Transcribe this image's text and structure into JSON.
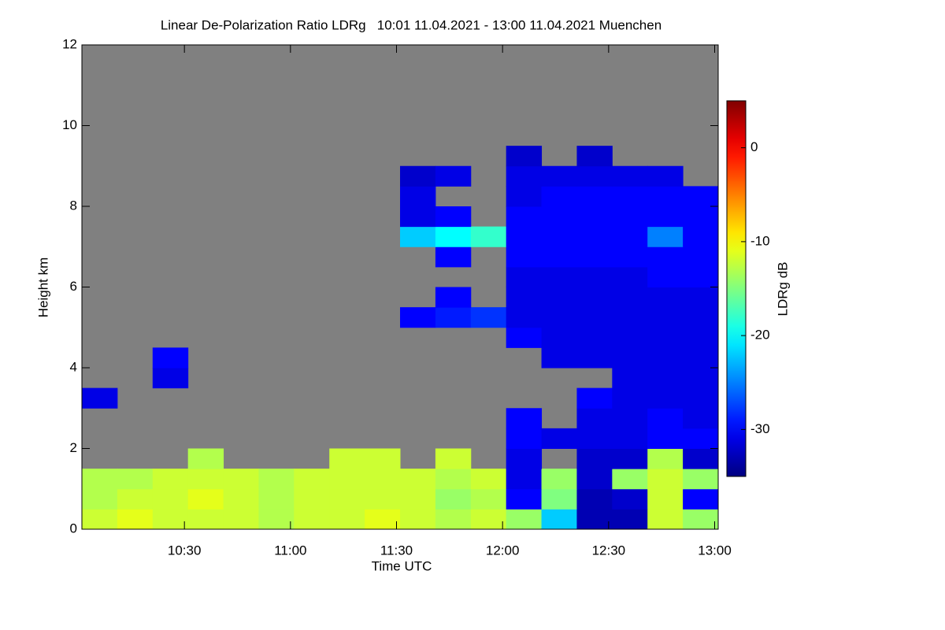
{
  "chart_data": {
    "type": "heatmap",
    "title": "Linear De-Polarization Ratio LDRg   10:01 11.04.2021 - 13:00 11.04.2021 Muenchen",
    "xlabel": "Time UTC",
    "ylabel": "Height km",
    "colorbar_label": "LDRg dB",
    "colormap": "jet",
    "background": "#808080",
    "xlim": [
      601,
      781
    ],
    "ylim": [
      0,
      12
    ],
    "xticks": [
      {
        "value": 630,
        "label": "10:30"
      },
      {
        "value": 660,
        "label": "11:00"
      },
      {
        "value": 690,
        "label": "11:30"
      },
      {
        "value": 720,
        "label": "12:00"
      },
      {
        "value": 750,
        "label": "12:30"
      },
      {
        "value": 780,
        "label": "13:00"
      }
    ],
    "yticks": [
      0,
      2,
      4,
      6,
      8,
      10,
      12
    ],
    "clim": [
      -35,
      5
    ],
    "cticks": [
      0,
      -10,
      -20,
      -30
    ],
    "x_bins": [
      601,
      611,
      621,
      631,
      641,
      651,
      661,
      671,
      681,
      691,
      701,
      711,
      721,
      731,
      741,
      751,
      761,
      771,
      781
    ],
    "y_bins": [
      0,
      0.5,
      1,
      1.5,
      2,
      2.5,
      3,
      3.5,
      4,
      4.5,
      5,
      5.5,
      6,
      6.5,
      7,
      7.5,
      8,
      8.5,
      9,
      9.5,
      10,
      10.5,
      11,
      11.5,
      12
    ],
    "z": [
      [
        -12,
        -11,
        -12,
        -12,
        -12,
        -13,
        -12,
        -12,
        -11,
        -12,
        -13,
        -12,
        -14,
        -22,
        -33,
        -33,
        -12,
        -14
      ],
      [
        -13,
        -12,
        -12,
        -11,
        -12,
        -13,
        -12,
        -12,
        -12,
        -12,
        -14,
        -13,
        -30,
        -15,
        -33,
        -32,
        -12,
        -30
      ],
      [
        -13,
        -13,
        -12,
        -12,
        -12,
        -13,
        -12,
        -12,
        -12,
        -12,
        -13,
        -12,
        -31,
        -14,
        -32,
        -14,
        -12,
        -14
      ],
      [
        null,
        null,
        null,
        -13,
        null,
        null,
        null,
        -12,
        -12,
        null,
        -12,
        null,
        -31,
        null,
        -32,
        -32,
        -13,
        -32
      ],
      [
        null,
        null,
        null,
        null,
        null,
        null,
        null,
        null,
        null,
        null,
        null,
        null,
        -30,
        -31,
        -31,
        -31,
        -30,
        -30
      ],
      [
        null,
        null,
        null,
        null,
        null,
        null,
        null,
        null,
        null,
        null,
        null,
        null,
        -30,
        null,
        -31,
        -31,
        -30,
        -31
      ],
      [
        -31,
        null,
        null,
        null,
        null,
        null,
        null,
        null,
        null,
        null,
        null,
        null,
        null,
        null,
        -30,
        -31,
        -31,
        -31
      ],
      [
        null,
        null,
        -31,
        null,
        null,
        null,
        null,
        null,
        null,
        null,
        null,
        null,
        null,
        null,
        null,
        -31,
        -31,
        -31
      ],
      [
        null,
        null,
        -30,
        null,
        null,
        null,
        null,
        null,
        null,
        null,
        null,
        null,
        null,
        -31,
        -31,
        -31,
        -31,
        -31
      ],
      [
        null,
        null,
        null,
        null,
        null,
        null,
        null,
        null,
        null,
        null,
        null,
        null,
        -30,
        -31,
        -31,
        -31,
        -31,
        -31
      ],
      [
        null,
        null,
        null,
        null,
        null,
        null,
        null,
        null,
        null,
        -30,
        -29,
        -28,
        -31,
        -31,
        -31,
        -31,
        -31,
        -31
      ],
      [
        null,
        null,
        null,
        null,
        null,
        null,
        null,
        null,
        null,
        null,
        -30,
        null,
        -31,
        -31,
        -31,
        -31,
        -31,
        -31
      ],
      [
        null,
        null,
        null,
        null,
        null,
        null,
        null,
        null,
        null,
        null,
        null,
        null,
        -31,
        -31,
        -31,
        -31,
        -30,
        -30
      ],
      [
        null,
        null,
        null,
        null,
        null,
        null,
        null,
        null,
        null,
        null,
        -30,
        null,
        -30,
        -30,
        -30,
        -30,
        -30,
        -30
      ],
      [
        null,
        null,
        null,
        null,
        null,
        null,
        null,
        null,
        null,
        -22,
        -20,
        -18,
        -30,
        -30,
        -30,
        -30,
        -25,
        -30
      ],
      [
        null,
        null,
        null,
        null,
        null,
        null,
        null,
        null,
        null,
        -31,
        -30,
        null,
        -30,
        -30,
        -30,
        -30,
        -30,
        -30
      ],
      [
        null,
        null,
        null,
        null,
        null,
        null,
        null,
        null,
        null,
        -31,
        null,
        null,
        -31,
        -30,
        -30,
        -30,
        -30,
        -30
      ],
      [
        null,
        null,
        null,
        null,
        null,
        null,
        null,
        null,
        null,
        -32,
        -31,
        null,
        -31,
        -31,
        -31,
        -31,
        -31,
        null
      ],
      [
        null,
        null,
        null,
        null,
        null,
        null,
        null,
        null,
        null,
        null,
        null,
        null,
        -32,
        null,
        -32,
        null,
        null,
        null
      ],
      [
        null,
        null,
        null,
        null,
        null,
        null,
        null,
        null,
        null,
        null,
        null,
        null,
        null,
        null,
        null,
        null,
        null,
        null
      ],
      [
        null,
        null,
        null,
        null,
        null,
        null,
        null,
        null,
        null,
        null,
        null,
        null,
        null,
        null,
        null,
        null,
        null,
        null
      ],
      [
        null,
        null,
        null,
        null,
        null,
        null,
        null,
        null,
        null,
        null,
        null,
        null,
        null,
        null,
        null,
        null,
        null,
        null
      ],
      [
        null,
        null,
        null,
        null,
        null,
        null,
        null,
        null,
        null,
        null,
        null,
        null,
        null,
        null,
        null,
        null,
        null,
        null
      ],
      [
        null,
        null,
        null,
        null,
        null,
        null,
        null,
        null,
        null,
        null,
        null,
        null,
        null,
        null,
        null,
        null,
        null,
        null
      ]
    ]
  }
}
